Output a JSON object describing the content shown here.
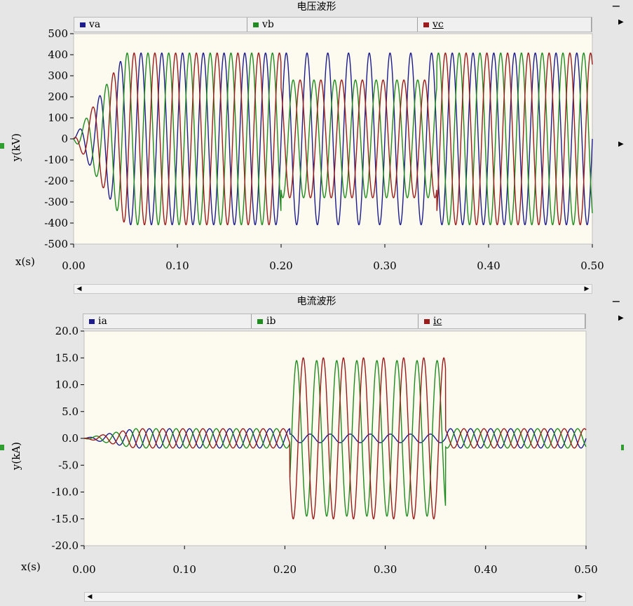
{
  "chart_data": [
    {
      "type": "line",
      "title": "电压波形",
      "xlabel": "x(s)",
      "ylabel": "y(kV)",
      "xlim": [
        0,
        0.5
      ],
      "ylim": [
        -500,
        500
      ],
      "x_ticks": [
        "0.00",
        "0.10",
        "0.20",
        "0.30",
        "0.40",
        "0.50"
      ],
      "y_ticks": [
        "500",
        "400",
        "300",
        "200",
        "100",
        "0",
        "-100",
        "-200",
        "-300",
        "-400",
        "-500"
      ],
      "frequency_hz": 50,
      "series": [
        {
          "name": "va",
          "color": "#1c1c8c",
          "amplitude_kv": 408,
          "phase_deg": 0
        },
        {
          "name": "vb",
          "color": "#1f8c1f",
          "amplitude_kv": 408,
          "phase_deg": -120
        },
        {
          "name": "vc",
          "color": "#9c1c1c",
          "amplitude_kv": 408,
          "phase_deg": 120
        }
      ],
      "ramp_end_s": 0.05,
      "fault_interval_s": [
        0.2,
        0.35
      ],
      "fault_amplitude_kv": {
        "va": 408,
        "vb": 280,
        "vc": 280
      }
    },
    {
      "type": "line",
      "title": "电流波形",
      "xlabel": "x(s)",
      "ylabel": "y(kA)",
      "xlim": [
        0,
        0.5
      ],
      "ylim": [
        -20,
        20
      ],
      "x_ticks": [
        "0.00",
        "0.10",
        "0.20",
        "0.30",
        "0.40",
        "0.50"
      ],
      "y_ticks": [
        "20.0",
        "15.0",
        "10.0",
        "5.0",
        "0.0",
        "-5.0",
        "-10.0",
        "-15.0",
        "-20.0"
      ],
      "frequency_hz": 50,
      "series": [
        {
          "name": "ia",
          "color": "#1c1c8c",
          "amplitude_ka": 1.8,
          "phase_deg": 0
        },
        {
          "name": "ib",
          "color": "#1f8c1f",
          "amplitude_ka": 1.8,
          "phase_deg": -120
        },
        {
          "name": "ic",
          "color": "#9c1c1c",
          "amplitude_ka": 1.8,
          "phase_deg": 120
        }
      ],
      "ramp_end_s": 0.05,
      "fault_interval_s": [
        0.205,
        0.36
      ],
      "fault_amplitude_ka": {
        "ia": 0.8,
        "ib": 14.5,
        "ic": 15
      }
    }
  ]
}
